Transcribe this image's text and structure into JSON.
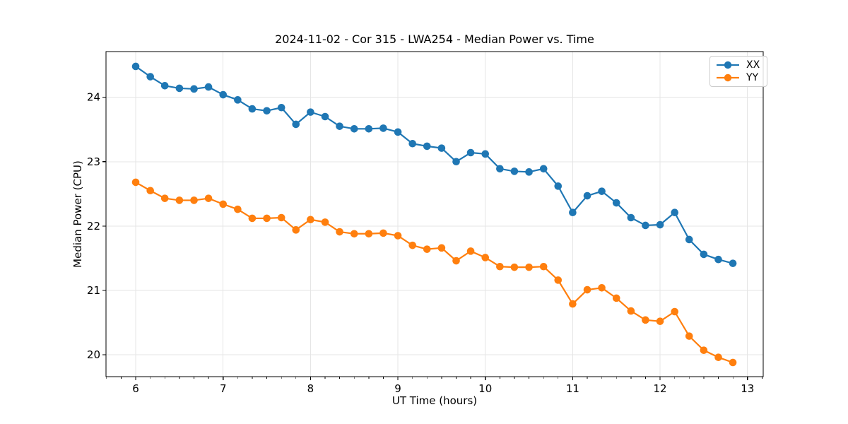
{
  "chart_data": {
    "type": "line",
    "title": "2024-11-02 - Cor 315 - LWA254 - Median Power vs. Time",
    "xlabel": "UT Time (hours)",
    "ylabel": "Median Power (CPU)",
    "x": [
      6.0,
      6.167,
      6.333,
      6.5,
      6.667,
      6.833,
      7.0,
      7.167,
      7.333,
      7.5,
      7.667,
      7.833,
      8.0,
      8.167,
      8.333,
      8.5,
      8.667,
      8.833,
      9.0,
      9.167,
      9.333,
      9.5,
      9.667,
      9.833,
      10.0,
      10.167,
      10.333,
      10.5,
      10.667,
      10.833,
      11.0,
      11.167,
      11.333,
      11.5,
      11.667,
      11.833,
      12.0,
      12.167,
      12.333,
      12.5,
      12.667,
      12.833
    ],
    "series": [
      {
        "name": "XX",
        "color": "#1f77b4",
        "values": [
          24.48,
          24.32,
          24.18,
          24.14,
          24.13,
          24.16,
          24.04,
          23.96,
          23.82,
          23.79,
          23.84,
          23.58,
          23.77,
          23.7,
          23.55,
          23.51,
          23.51,
          23.52,
          23.46,
          23.28,
          23.24,
          23.21,
          23.0,
          23.14,
          23.12,
          22.89,
          22.85,
          22.84,
          22.89,
          22.62,
          22.21,
          22.47,
          22.54,
          22.36,
          22.13,
          22.01,
          22.02,
          22.21,
          21.79,
          21.56,
          21.48,
          21.42
        ]
      },
      {
        "name": "YY",
        "color": "#ff7f0e",
        "values": [
          22.68,
          22.55,
          22.43,
          22.4,
          22.4,
          22.43,
          22.34,
          22.26,
          22.12,
          22.12,
          22.13,
          21.94,
          22.1,
          22.06,
          21.91,
          21.88,
          21.88,
          21.89,
          21.85,
          21.7,
          21.64,
          21.66,
          21.46,
          21.61,
          21.51,
          21.37,
          21.36,
          21.36,
          21.37,
          21.16,
          20.79,
          21.01,
          21.04,
          20.88,
          20.68,
          20.54,
          20.52,
          20.67,
          20.29,
          20.07,
          19.96,
          19.88
        ]
      }
    ],
    "xlim": [
      5.66,
      13.18
    ],
    "ylim": [
      19.66,
      24.71
    ],
    "xticks": [
      6,
      7,
      8,
      9,
      10,
      11,
      12,
      13
    ],
    "yticks": [
      20,
      21,
      22,
      23,
      24
    ],
    "x_minor_step": 0.16667,
    "grid": true,
    "grid_color": "#e5e5e5",
    "legend_position": "upper right",
    "marker": "o"
  }
}
